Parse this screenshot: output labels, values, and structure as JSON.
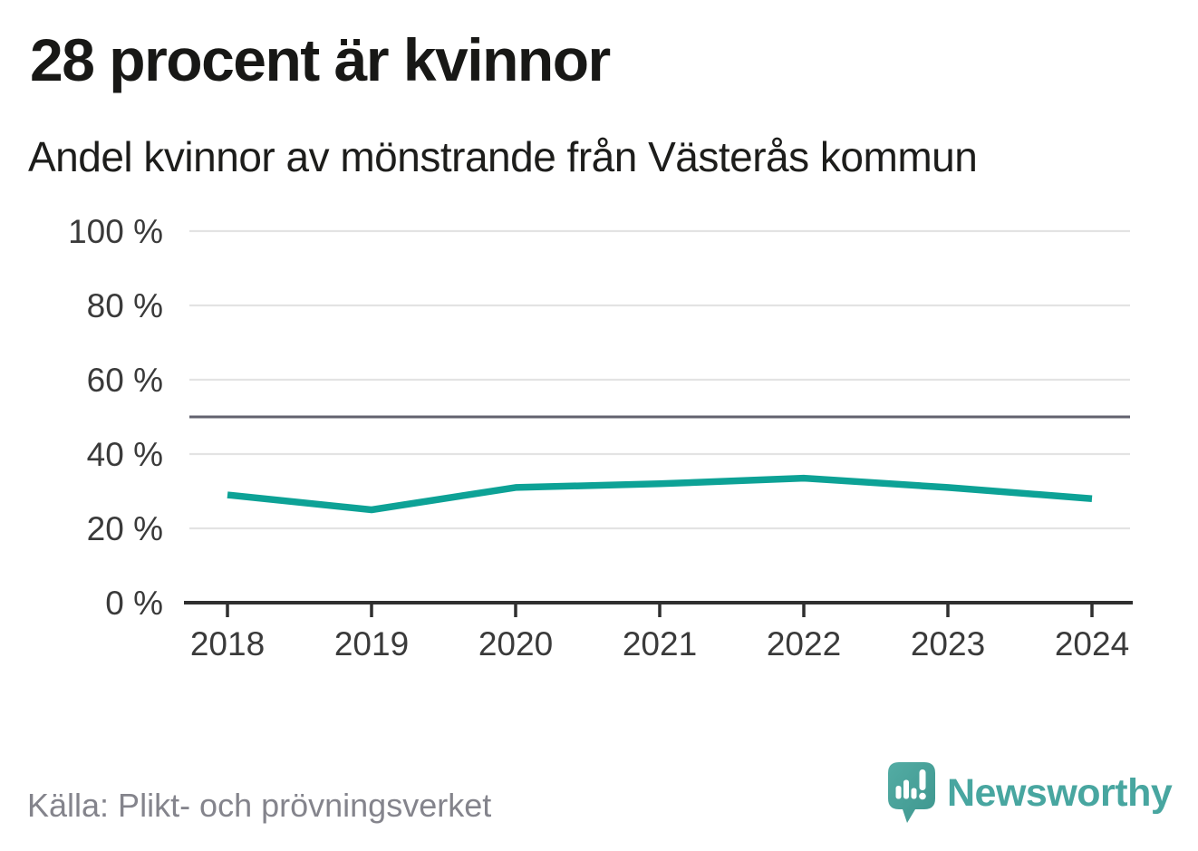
{
  "header": {
    "title": "28 procent är kvinnor",
    "subtitle": "Andel kvinnor av mönstrande från Västerås kommun"
  },
  "chart_data": {
    "type": "line",
    "x": [
      "2018",
      "2019",
      "2020",
      "2021",
      "2022",
      "2023",
      "2024"
    ],
    "series": [
      {
        "name": "Andel kvinnor av mönstrande",
        "values": [
          29,
          25,
          31,
          32,
          33.5,
          31,
          28
        ]
      }
    ],
    "unit": "%",
    "ylim": [
      0,
      100
    ],
    "yticks": [
      {
        "value": 0,
        "label": "0 %"
      },
      {
        "value": 20,
        "label": "20 %"
      },
      {
        "value": 40,
        "label": "40 %"
      },
      {
        "value": 60,
        "label": "60 %"
      },
      {
        "value": 80,
        "label": "80 %"
      },
      {
        "value": 100,
        "label": "100 %"
      }
    ],
    "refline": {
      "value": 50
    },
    "grid": "horizontal",
    "legend": "none",
    "colors": {
      "line": "#0DA296",
      "grid": "#E3E3E3",
      "axis": "#2F2F2F",
      "refline": "#62626E",
      "tick_text": "#3A3A3A"
    }
  },
  "footer": {
    "source": "Källa: Plikt- och prövningsverket",
    "brand": "Newsworthy"
  }
}
